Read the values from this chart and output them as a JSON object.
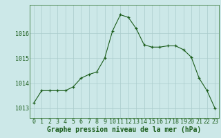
{
  "x": [
    0,
    1,
    2,
    3,
    4,
    5,
    6,
    7,
    8,
    9,
    10,
    11,
    12,
    13,
    14,
    15,
    16,
    17,
    18,
    19,
    20,
    21,
    22,
    23
  ],
  "y": [
    1013.2,
    1013.7,
    1013.7,
    1013.7,
    1013.7,
    1013.85,
    1014.2,
    1014.35,
    1014.45,
    1015.0,
    1016.1,
    1016.75,
    1016.65,
    1016.2,
    1015.55,
    1015.45,
    1015.45,
    1015.5,
    1015.5,
    1015.35,
    1015.05,
    1014.2,
    1013.7,
    1013.0
  ],
  "line_color": "#1a5c1a",
  "marker_color": "#1a5c1a",
  "bg_color": "#cce8e8",
  "grid_color": "#aacccc",
  "border_color": "#3a7a3a",
  "xlabel": "Graphe pression niveau de la mer (hPa)",
  "xlabel_color": "#1a5c1a",
  "xlabel_fontsize": 7,
  "tick_label_color": "#1a5c1a",
  "tick_label_fontsize": 6,
  "ylim": [
    1012.6,
    1017.15
  ],
  "yticks": [
    1013,
    1014,
    1015,
    1016
  ],
  "title": ""
}
